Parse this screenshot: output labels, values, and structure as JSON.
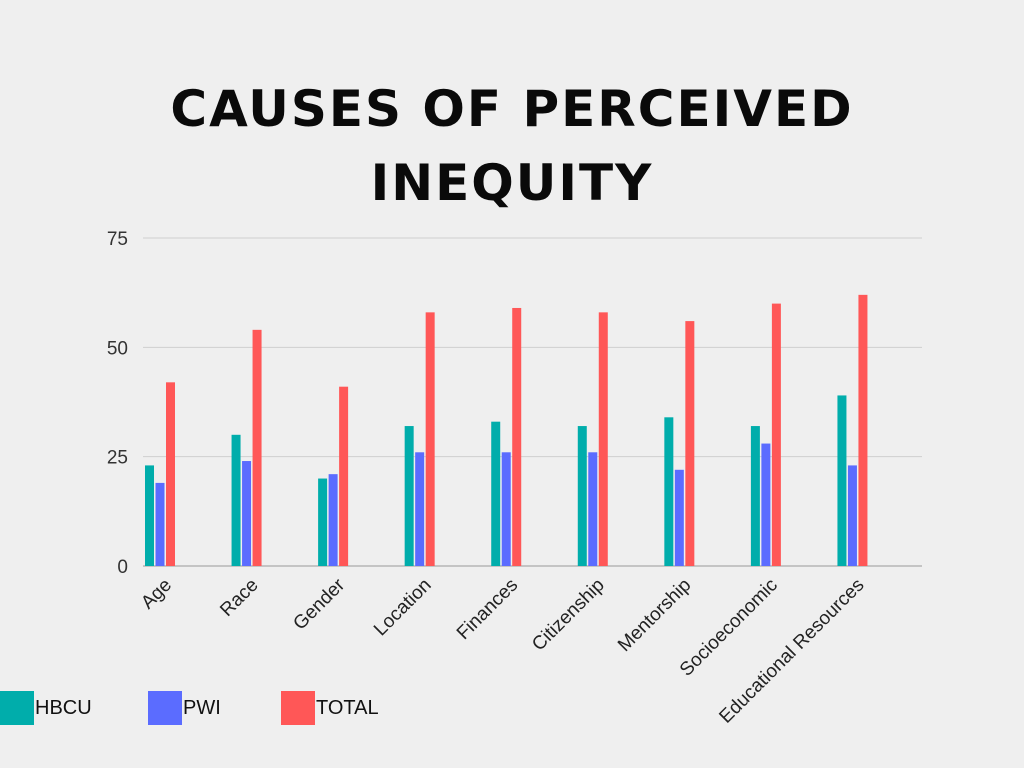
{
  "title_lines": [
    "CAUSES OF PERCEIVED",
    "INEQUITY"
  ],
  "chart_data": {
    "type": "bar",
    "title": "CAUSES OF PERCEIVED INEQUITY",
    "categories": [
      "Age",
      "Race",
      "Gender",
      "Location",
      "Finances",
      "Citizenship",
      "Mentorship",
      "Socioeconomic",
      "Educational Resources"
    ],
    "series": [
      {
        "name": "HBCU",
        "color": "#00adab",
        "values": [
          23,
          30,
          20,
          32,
          33,
          32,
          34,
          32,
          39
        ]
      },
      {
        "name": "PWI",
        "color": "#5b6cff",
        "values": [
          19,
          24,
          21,
          26,
          26,
          26,
          22,
          28,
          23
        ]
      },
      {
        "name": "TOTAL",
        "color": "#ff5757",
        "values": [
          42,
          54,
          41,
          58,
          59,
          58,
          56,
          60,
          62
        ]
      }
    ],
    "ylim": [
      0,
      75
    ],
    "yticks": [
      0,
      25,
      50,
      75
    ],
    "xlabel": "",
    "ylabel": "",
    "grid": true,
    "legend": "bottom-left"
  }
}
